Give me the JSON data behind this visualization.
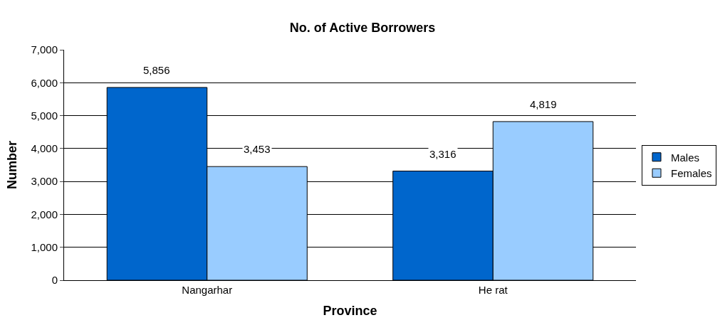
{
  "chart_data": {
    "type": "bar",
    "title": "No. of Active Borrowers",
    "xlabel": "Province",
    "ylabel": "Number",
    "categories": [
      "Nangarhar",
      "He rat"
    ],
    "series": [
      {
        "name": "Males",
        "color": "#0066cc",
        "values": [
          5856,
          3316
        ],
        "value_labels": [
          "5,856",
          "3,316"
        ]
      },
      {
        "name": "Females",
        "color": "#99ccff",
        "values": [
          3453,
          4819
        ],
        "value_labels": [
          "3,453",
          "4,819"
        ]
      }
    ],
    "ylim": [
      0,
      7000
    ],
    "yticks": [
      0,
      {
        "value": 1000,
        "label": "1,000"
      },
      {
        "value": 2000,
        "label": "2,000"
      },
      {
        "value": 3000,
        "label": "3,000"
      },
      {
        "value": 4000,
        "label": "4,000"
      },
      {
        "value": 5000,
        "label": "5,000"
      },
      {
        "value": 6000,
        "label": "6,000"
      },
      {
        "value": 7000,
        "label": "7,000"
      }
    ],
    "grid": "y",
    "legend": "right"
  }
}
